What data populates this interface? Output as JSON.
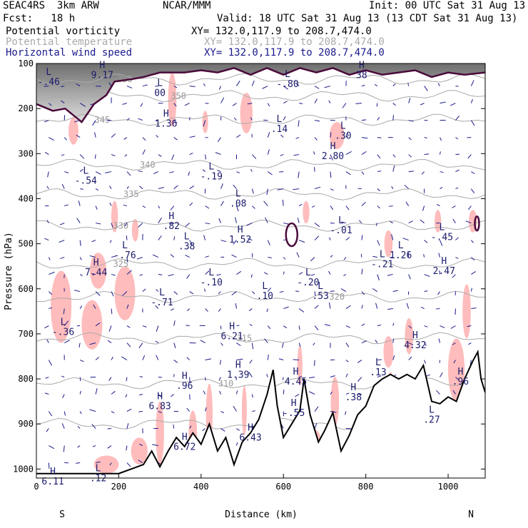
{
  "header": {
    "model": "SEAC4RS  3km ARW",
    "org": "NCAR/MMM",
    "init": "Init: 00 UTC Sat 31 Aug 13",
    "fcst": "Fcst:   18 h",
    "valid": "Valid: 18 UTC Sat 31 Aug 13 (13 CDT Sat 31 Aug 13)",
    "fields": [
      {
        "name": "Potential vorticity",
        "xy": "XY= 132.0,117.9 to 208.7,474.0",
        "color": "#000000"
      },
      {
        "name": "Potential temperature",
        "xy": "XY= 132.0,117.9 to 208.7,474.0",
        "color": "#aaaaaa"
      },
      {
        "name": "Horizontal wind speed",
        "xy": "XY= 132.0,117.9 to 208.7,474.0",
        "color": "#1a1a8c"
      }
    ]
  },
  "chart_data": {
    "type": "cross-section",
    "xlabel": "Distance (km)",
    "ylabel": "Pressure (hPa)",
    "xlim": [
      0,
      1090
    ],
    "ylim": [
      1020,
      100
    ],
    "x_ticks": [
      0,
      200,
      400,
      600,
      800,
      1000
    ],
    "y_ticks": [
      100,
      200,
      300,
      400,
      500,
      600,
      700,
      800,
      900,
      1000
    ],
    "endpoints": {
      "left": "S",
      "right": "N"
    },
    "theta_isentropes": [
      {
        "label": "355",
        "p": 135,
        "lx": 215
      },
      {
        "label": "350",
        "p": 172,
        "lx": 345
      },
      {
        "label": "345",
        "p": 225,
        "lx": 160
      },
      {
        "label": "340",
        "p": 325,
        "lx": 270
      },
      {
        "label": "335",
        "p": 390,
        "lx": 230
      },
      {
        "label": "330",
        "p": 460,
        "lx": 205
      },
      {
        "label": "325",
        "p": 545,
        "lx": 205
      },
      {
        "label": "320",
        "p": 618,
        "lx": 730
      },
      {
        "label": "315",
        "p": 710,
        "lx": 505
      },
      {
        "label": "310",
        "p": 810,
        "lx": 460
      },
      {
        "label": "305",
        "p": 900,
        "lx": 650
      }
    ],
    "extrema": [
      {
        "t": "L",
        "v": "-.46",
        "x": 30,
        "p": 125
      },
      {
        "t": "H",
        "v": "9.17",
        "x": 160,
        "p": 110
      },
      {
        "t": "L",
        "v": "00",
        "x": 300,
        "p": 150
      },
      {
        "t": "L",
        "v": "-.80",
        "x": 610,
        "p": 130
      },
      {
        "t": "H",
        "v": "38",
        "x": 790,
        "p": 110
      },
      {
        "t": "H",
        "v": "1.36",
        "x": 315,
        "p": 218
      },
      {
        "t": "L",
        "v": ".14",
        "x": 590,
        "p": 230
      },
      {
        "t": "L",
        "v": ".30",
        "x": 745,
        "p": 245
      },
      {
        "t": "H",
        "v": "2.80",
        "x": 720,
        "p": 290
      },
      {
        "t": "L",
        "v": "-.54",
        "x": 120,
        "p": 345
      },
      {
        "t": "L",
        "v": "-.19",
        "x": 425,
        "p": 335
      },
      {
        "t": "L",
        "v": ".08",
        "x": 490,
        "p": 395
      },
      {
        "t": "H",
        "v": ".82",
        "x": 328,
        "p": 445
      },
      {
        "t": "H",
        "v": "1.52",
        "x": 495,
        "p": 475
      },
      {
        "t": "L",
        "v": "-.01",
        "x": 740,
        "p": 455
      },
      {
        "t": "L",
        "v": ".38",
        "x": 365,
        "p": 490
      },
      {
        "t": "L",
        "v": "-.76",
        "x": 215,
        "p": 510
      },
      {
        "t": "L",
        "v": "-.45",
        "x": 985,
        "p": 470
      },
      {
        "t": "L",
        "v": "-.21",
        "x": 840,
        "p": 530
      },
      {
        "t": "L",
        "v": "1.26",
        "x": 885,
        "p": 510
      },
      {
        "t": "H",
        "v": "7.44",
        "x": 145,
        "p": 548
      },
      {
        "t": "H",
        "v": "2.47",
        "x": 990,
        "p": 545
      },
      {
        "t": "L",
        "v": "-.10",
        "x": 425,
        "p": 570
      },
      {
        "t": "L",
        "v": "-.20",
        "x": 660,
        "p": 570
      },
      {
        "t": "L",
        "v": ".10",
        "x": 555,
        "p": 600
      },
      {
        "t": "L",
        "v": ".53",
        "x": 690,
        "p": 600
      },
      {
        "t": "L",
        "v": "-.71",
        "x": 305,
        "p": 615
      },
      {
        "t": "L",
        "v": "-.36",
        "x": 65,
        "p": 680
      },
      {
        "t": "H",
        "v": "6.21",
        "x": 475,
        "p": 690
      },
      {
        "t": "H",
        "v": "4.32",
        "x": 920,
        "p": 710
      },
      {
        "t": "H",
        "v": "1.39",
        "x": 490,
        "p": 775
      },
      {
        "t": "H",
        "v": "4.45",
        "x": 630,
        "p": 790
      },
      {
        "t": "L",
        "v": ".13",
        "x": 830,
        "p": 770
      },
      {
        "t": "H",
        "v": ".96",
        "x": 1030,
        "p": 790
      },
      {
        "t": "H",
        "v": ".96",
        "x": 360,
        "p": 800
      },
      {
        "t": "H",
        "v": ".38",
        "x": 770,
        "p": 825
      },
      {
        "t": "H",
        "v": "6.83",
        "x": 300,
        "p": 845
      },
      {
        "t": "H",
        "v": "-.55",
        "x": 625,
        "p": 860
      },
      {
        "t": "L",
        "v": ".27",
        "x": 960,
        "p": 875
      },
      {
        "t": "H",
        "v": "6.43",
        "x": 520,
        "p": 915
      },
      {
        "t": "H",
        "v": "6.72",
        "x": 360,
        "p": 935
      },
      {
        "t": "L",
        "v": ".12",
        "x": 150,
        "p": 1005
      },
      {
        "t": "H",
        "v": "6.11",
        "x": 40,
        "p": 1012
      }
    ],
    "terrain_p": [
      [
        0,
        1010
      ],
      [
        200,
        1010
      ],
      [
        260,
        990
      ],
      [
        280,
        960
      ],
      [
        300,
        995
      ],
      [
        320,
        960
      ],
      [
        340,
        930
      ],
      [
        360,
        950
      ],
      [
        380,
        920
      ],
      [
        400,
        945
      ],
      [
        420,
        900
      ],
      [
        440,
        960
      ],
      [
        460,
        930
      ],
      [
        480,
        990
      ],
      [
        500,
        940
      ],
      [
        520,
        920
      ],
      [
        540,
        890
      ],
      [
        560,
        835
      ],
      [
        575,
        780
      ],
      [
        585,
        860
      ],
      [
        600,
        930
      ],
      [
        620,
        900
      ],
      [
        640,
        870
      ],
      [
        650,
        800
      ],
      [
        665,
        880
      ],
      [
        685,
        940
      ],
      [
        700,
        915
      ],
      [
        720,
        875
      ],
      [
        740,
        960
      ],
      [
        760,
        925
      ],
      [
        780,
        880
      ],
      [
        800,
        860
      ],
      [
        820,
        815
      ],
      [
        840,
        800
      ],
      [
        860,
        790
      ],
      [
        880,
        800
      ],
      [
        900,
        790
      ],
      [
        920,
        800
      ],
      [
        940,
        770
      ],
      [
        960,
        850
      ],
      [
        980,
        855
      ],
      [
        1000,
        840
      ],
      [
        1020,
        850
      ],
      [
        1040,
        800
      ],
      [
        1060,
        760
      ],
      [
        1072,
        740
      ],
      [
        1080,
        800
      ],
      [
        1090,
        830
      ]
    ],
    "tropopause_p": [
      [
        0,
        190
      ],
      [
        40,
        205
      ],
      [
        70,
        200
      ],
      [
        110,
        230
      ],
      [
        140,
        190
      ],
      [
        170,
        170
      ],
      [
        190,
        140
      ],
      [
        230,
        135
      ],
      [
        260,
        130
      ],
      [
        300,
        120
      ],
      [
        360,
        120
      ],
      [
        400,
        115
      ],
      [
        440,
        120
      ],
      [
        480,
        110
      ],
      [
        520,
        125
      ],
      [
        560,
        110
      ],
      [
        600,
        125
      ],
      [
        640,
        110
      ],
      [
        680,
        120
      ],
      [
        720,
        110
      ],
      [
        760,
        125
      ],
      [
        800,
        115
      ],
      [
        840,
        125
      ],
      [
        880,
        120
      ],
      [
        920,
        115
      ],
      [
        960,
        130
      ],
      [
        1000,
        120
      ],
      [
        1040,
        125
      ],
      [
        1090,
        120
      ]
    ]
  }
}
